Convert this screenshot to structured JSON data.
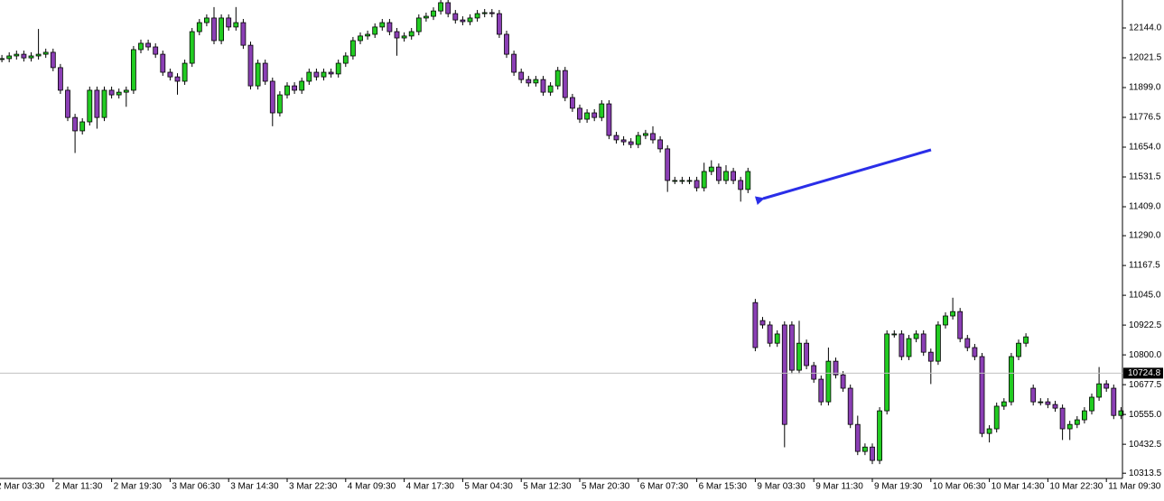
{
  "chart_data": {
    "type": "candlestick",
    "categories": [
      "2 Mar 03:30",
      null,
      null,
      null,
      null,
      null,
      null,
      null,
      "2 Mar 11:30",
      null,
      null,
      null,
      null,
      null,
      null,
      null,
      "2 Mar 19:30",
      null,
      null,
      null,
      null,
      null,
      null,
      null,
      "3 Mar 06:30",
      null,
      null,
      null,
      null,
      null,
      null,
      null,
      "3 Mar 14:30",
      null,
      null,
      null,
      null,
      null,
      null,
      null,
      "3 Mar 22:30",
      null,
      null,
      null,
      null,
      null,
      null,
      null,
      "4 Mar 09:30",
      null,
      null,
      null,
      null,
      null,
      null,
      null,
      "4 Mar 17:30",
      null,
      null,
      null,
      null,
      null,
      null,
      null,
      "5 Mar 04:30",
      null,
      null,
      null,
      null,
      null,
      null,
      null,
      "5 Mar 12:30",
      null,
      null,
      null,
      null,
      null,
      null,
      null,
      "5 Mar 20:30",
      null,
      null,
      null,
      null,
      null,
      null,
      null,
      "6 Mar 07:30",
      null,
      null,
      null,
      null,
      null,
      null,
      null,
      "6 Mar 15:30",
      null,
      null,
      null,
      null,
      null,
      null,
      null,
      "9 Mar 03:30",
      null,
      null,
      null,
      null,
      null,
      null,
      null,
      "9 Mar 11:30",
      null,
      null,
      null,
      null,
      null,
      null,
      null,
      "9 Mar 19:30",
      null,
      null,
      null,
      null,
      null,
      null,
      null,
      "10 Mar 06:30",
      null,
      null,
      null,
      null,
      null,
      null,
      null,
      "10 Mar 14:30",
      null,
      null,
      null,
      null,
      null,
      null,
      null,
      "10 Mar 22:30",
      null,
      null,
      null,
      null,
      null,
      null,
      null,
      "11 Mar 09:30",
      null,
      null
    ],
    "open": [
      12010,
      12018,
      12018,
      12029,
      12036,
      12021,
      12029,
      12036,
      12044,
      11981,
      11888,
      11776,
      11721,
      11758,
      11888,
      11776,
      11888,
      11869,
      11880,
      11888,
      12055,
      12081,
      12066,
      12036,
      11962,
      11943,
      11925,
      11999,
      12129,
      12166,
      12185,
      12092,
      12185,
      12148,
      12166,
      12073,
      11906,
      11999,
      11925,
      11795,
      11869,
      11906,
      11888,
      11925,
      11962,
      11943,
      11962,
      11955,
      11999,
      12029,
      12092,
      12111,
      12118,
      12148,
      12166,
      12129,
      12103,
      12111,
      12129,
      12185,
      12192,
      12214,
      12248,
      12203,
      12177,
      12170,
      12185,
      12203,
      12207,
      12203,
      12118,
      12036,
      11962,
      11932,
      11918,
      11932,
      11880,
      11906,
      11969,
      11858,
      11814,
      11769,
      11795,
      11776,
      11832,
      11702,
      11684,
      11676,
      11665,
      11702,
      11710,
      11684,
      11647,
      11517,
      11517,
      11517,
      11517,
      11487,
      11554,
      11572,
      11517,
      11554,
      11517,
      11480,
      11015,
      10941,
      10923,
      10848,
      10923,
      10923,
      10737,
      10848,
      10756,
      10700,
      10607,
      10774,
      10718,
      10663,
      10514,
      10403,
      10421,
      10366,
      10570,
      10886,
      10886,
      10793,
      10867,
      10886,
      10811,
      10774,
      10923,
      10960,
      10978,
      10867,
      10830,
      10793,
      10477,
      10496,
      10589,
      10607,
      10793,
      10848,
      10663,
      10607,
      10607,
      10596,
      10581,
      10496,
      10514,
      10533,
      10570,
      10626,
      10681,
      10663,
      10551
    ],
    "high": [
      12033,
      12033,
      12044,
      12051,
      12051,
      12044,
      12140,
      12059,
      12059,
      11996,
      11903,
      11791,
      11773,
      11903,
      11903,
      11903,
      11903,
      11895,
      11903,
      12070,
      12096,
      12096,
      12081,
      12051,
      11977,
      11958,
      12014,
      12144,
      12181,
      12200,
      12230,
      12200,
      12200,
      12230,
      12181,
      12088,
      12014,
      12014,
      11940,
      11884,
      11921,
      11921,
      11940,
      11977,
      11977,
      11977,
      11977,
      12014,
      12044,
      12107,
      12126,
      12133,
      12163,
      12181,
      12181,
      12144,
      12126,
      12144,
      12200,
      12207,
      12229,
      12263,
      12263,
      12218,
      12192,
      12200,
      12218,
      12222,
      12222,
      12218,
      12133,
      12051,
      11977,
      11947,
      11947,
      11947,
      11921,
      11984,
      11984,
      11873,
      11829,
      11810,
      11810,
      11847,
      11847,
      11717,
      11699,
      11691,
      11717,
      11725,
      11740,
      11699,
      11662,
      11532,
      11532,
      11532,
      11532,
      11590,
      11600,
      11587,
      11580,
      11569,
      11532,
      11569,
      11030,
      10956,
      10938,
      10901,
      10938,
      10938,
      10940,
      10863,
      10771,
      10715,
      10830,
      10789,
      10733,
      10678,
      10550,
      10436,
      10436,
      10585,
      10901,
      10901,
      10901,
      10882,
      10901,
      10901,
      10826,
      10938,
      10975,
      11035,
      10993,
      10882,
      10845,
      10808,
      10511,
      10604,
      10622,
      10808,
      10863,
      10889,
      10678,
      10622,
      10622,
      10611,
      10596,
      10529,
      10548,
      10585,
      10641,
      10750,
      10696,
      10678,
      10585
    ],
    "low": [
      11995,
      12003,
      12003,
      12014,
      12006,
      12006,
      12014,
      12021,
      11966,
      11873,
      11761,
      11630,
      11706,
      11743,
      11730,
      11761,
      11854,
      11854,
      11820,
      11873,
      12040,
      12051,
      12021,
      11947,
      11928,
      11870,
      11910,
      11984,
      12114,
      12151,
      12077,
      12077,
      12133,
      12133,
      12058,
      11891,
      11891,
      11910,
      11740,
      11780,
      11854,
      11873,
      11873,
      11910,
      11928,
      11928,
      11940,
      11940,
      11984,
      12014,
      12077,
      12096,
      12103,
      12133,
      12114,
      12030,
      12088,
      12096,
      12114,
      12170,
      12177,
      12199,
      12188,
      12162,
      12155,
      12155,
      12170,
      12188,
      12188,
      12103,
      12021,
      11947,
      11917,
      11903,
      11903,
      11865,
      11865,
      11891,
      11843,
      11799,
      11754,
      11754,
      11761,
      11761,
      11687,
      11669,
      11661,
      11650,
      11650,
      11687,
      11669,
      11632,
      11470,
      11502,
      11502,
      11502,
      11472,
      11472,
      11539,
      11502,
      11502,
      11502,
      11430,
      11465,
      10815,
      10908,
      10833,
      10833,
      10420,
      10722,
      10722,
      10741,
      10685,
      10592,
      10592,
      10703,
      10648,
      10499,
      10388,
      10388,
      10351,
      10351,
      10555,
      10871,
      10778,
      10778,
      10852,
      10796,
      10680,
      10759,
      10908,
      10945,
      10852,
      10815,
      10778,
      10462,
      10440,
      10481,
      10574,
      10592,
      10778,
      10833,
      10592,
      10592,
      10581,
      10566,
      10450,
      10450,
      10499,
      10518,
      10555,
      10611,
      10648,
      10536,
      10536
    ],
    "close": [
      12018,
      12018,
      12029,
      12036,
      12021,
      12029,
      12036,
      12044,
      11981,
      11888,
      11776,
      11721,
      11758,
      11888,
      11776,
      11888,
      11869,
      11880,
      11888,
      12055,
      12081,
      12066,
      12036,
      11962,
      11943,
      11925,
      11999,
      12129,
      12166,
      12185,
      12092,
      12185,
      12148,
      12166,
      12073,
      11906,
      11999,
      11925,
      11795,
      11869,
      11906,
      11888,
      11925,
      11962,
      11943,
      11962,
      11955,
      11999,
      12029,
      12092,
      12111,
      12118,
      12148,
      12166,
      12129,
      12103,
      12111,
      12129,
      12185,
      12192,
      12214,
      12248,
      12203,
      12177,
      12170,
      12185,
      12203,
      12207,
      12203,
      12118,
      12036,
      11962,
      11932,
      11918,
      11932,
      11880,
      11906,
      11969,
      11858,
      11814,
      11769,
      11795,
      11776,
      11832,
      11702,
      11684,
      11676,
      11665,
      11702,
      11710,
      11684,
      11647,
      11517,
      11517,
      11517,
      11517,
      11487,
      11554,
      11572,
      11517,
      11554,
      11517,
      11480,
      11554,
      10830,
      10923,
      10848,
      10886,
      10514,
      10737,
      10848,
      10756,
      10700,
      10607,
      10774,
      10718,
      10663,
      10514,
      10403,
      10421,
      10366,
      10570,
      10886,
      10886,
      10793,
      10867,
      10886,
      10811,
      10774,
      10923,
      10960,
      10978,
      10867,
      10830,
      10793,
      10477,
      10496,
      10589,
      10607,
      10793,
      10848,
      10874,
      10607,
      10607,
      10596,
      10581,
      10496,
      10514,
      10533,
      10570,
      10626,
      10681,
      10663,
      10551,
      10570
    ],
    "up_color": "#22cc22",
    "down_color": "#8b3fb5",
    "ylim": [
      10292,
      12259
    ],
    "yticks": [
      {
        "value": 10313.5,
        "label": "10313.5"
      },
      {
        "value": 10432.5,
        "label": "10432.5"
      },
      {
        "value": 10555,
        "label": "10555.0"
      },
      {
        "value": 10677.5,
        "label": "10677.5"
      },
      {
        "value": 10800,
        "label": "10800.0"
      },
      {
        "value": 10922.5,
        "label": "10922.5"
      },
      {
        "value": 11045,
        "label": "11045.0"
      },
      {
        "value": 11167.5,
        "label": "11167.5"
      },
      {
        "value": 11290,
        "label": "11290.0"
      },
      {
        "value": 11409,
        "label": "11409.0"
      },
      {
        "value": 11531.5,
        "label": "11531.5"
      },
      {
        "value": 11654,
        "label": "11654.0"
      },
      {
        "value": 11776.5,
        "label": "11776.5"
      },
      {
        "value": 11899,
        "label": "11899.0"
      },
      {
        "value": 12021.5,
        "label": "12021.5"
      },
      {
        "value": 12144,
        "label": "12144.0"
      }
    ],
    "current_price": {
      "value": 10724.8,
      "label": "10724.8"
    }
  }
}
